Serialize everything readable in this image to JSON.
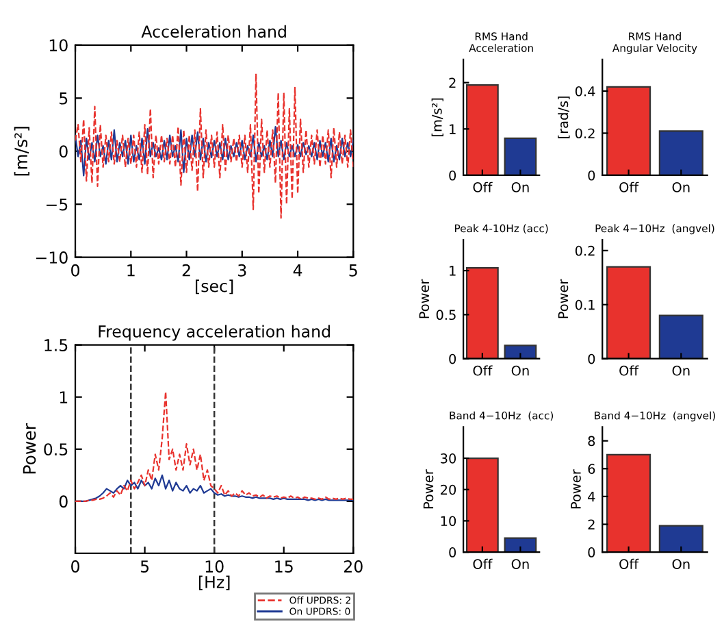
{
  "chart_data": [
    {
      "type": "line",
      "title": "Acceleration hand",
      "xlabel": "[sec]",
      "ylabel": "[m/s²]",
      "xlim": [
        0,
        5
      ],
      "xticks": [
        0,
        1,
        2,
        3,
        4,
        5
      ],
      "ylim": [
        -10,
        10
      ],
      "yticks": [
        {
          "value": -10,
          "label": "−10"
        },
        {
          "value": -5,
          "label": "−5"
        },
        0,
        5,
        10
      ],
      "grid": false,
      "legend": false,
      "x": [
        0,
        0.05,
        0.1,
        0.15,
        0.2,
        0.25,
        0.3,
        0.35,
        0.4,
        0.45,
        0.5,
        0.55,
        0.6,
        0.65,
        0.7,
        0.75,
        0.8,
        0.85,
        0.9,
        0.95,
        1.0,
        1.05,
        1.1,
        1.15,
        1.2,
        1.25,
        1.3,
        1.35,
        1.4,
        1.45,
        1.5,
        1.55,
        1.6,
        1.65,
        1.7,
        1.75,
        1.8,
        1.85,
        1.9,
        1.95,
        2.0,
        2.05,
        2.1,
        2.15,
        2.2,
        2.25,
        2.3,
        2.35,
        2.4,
        2.45,
        2.5,
        2.55,
        2.6,
        2.65,
        2.7,
        2.75,
        2.8,
        2.85,
        2.9,
        2.95,
        3.0,
        3.05,
        3.1,
        3.15,
        3.2,
        3.25,
        3.3,
        3.35,
        3.4,
        3.45,
        3.5,
        3.55,
        3.6,
        3.65,
        3.7,
        3.75,
        3.8,
        3.85,
        3.9,
        3.95,
        4.0,
        4.05,
        4.1,
        4.15,
        4.2,
        4.25,
        4.3,
        4.35,
        4.4,
        4.45,
        4.5,
        4.55,
        4.6,
        4.65,
        4.7,
        4.75,
        4.8,
        4.85,
        4.9,
        4.95,
        5.0
      ],
      "series": [
        {
          "color": "#e8322d",
          "line_style": "dashed",
          "values": [
            1,
            2.5,
            -1,
            3,
            -2.8,
            2.2,
            -3,
            4.2,
            -3.3,
            2.5,
            -1.5,
            1.5,
            -1,
            1.8,
            -1.2,
            1,
            -1,
            1.5,
            -1.5,
            1.2,
            -1.2,
            1.5,
            -1.5,
            1.8,
            -2,
            2.5,
            -2.2,
            4,
            -2.5,
            1.5,
            -1.2,
            1.5,
            -1,
            1.2,
            -1.2,
            1.5,
            -1.5,
            2.3,
            -3.2,
            2,
            -2,
            1.5,
            -1.8,
            2,
            -3.8,
            4,
            -2.5,
            2,
            -1.5,
            1.5,
            -1.5,
            1.8,
            -2.5,
            2.5,
            -1.8,
            1.5,
            -1,
            1.2,
            -1,
            1.5,
            -1.5,
            1.5,
            -2,
            2.5,
            -5.5,
            7.3,
            -4,
            3,
            -2,
            2,
            -1.5,
            2,
            -3,
            5.5,
            -6.3,
            5.5,
            -5,
            4,
            -4.5,
            6,
            -4,
            3,
            -2,
            2,
            -1.5,
            1.5,
            -1.2,
            2,
            -1.5,
            1.5,
            -1.2,
            2,
            -2.5,
            2.2,
            -1.5,
            1.8,
            -1.2,
            1.5,
            -1.5,
            2,
            -1.5
          ]
        },
        {
          "color": "#1f3a93",
          "line_style": "solid",
          "values": [
            1.5,
            -0.5,
            1,
            -2.3,
            1.2,
            -0.8,
            0.8,
            -1,
            1.5,
            -0.5,
            0.5,
            -1.2,
            1,
            -0.8,
            2,
            -1,
            0.8,
            -0.5,
            1,
            -1.2,
            1.5,
            -1,
            0.5,
            -0.8,
            1.2,
            -1.2,
            2.1,
            -0.5,
            0.8,
            -0.5,
            0.3,
            -0.8,
            1,
            -0.8,
            1.5,
            -0.5,
            0.5,
            -1,
            2,
            -2,
            1.2,
            -0.8,
            1.5,
            -0.5,
            1.8,
            -0.8,
            1.2,
            -1,
            0.8,
            -0.6,
            1,
            -0.5,
            0.8,
            -0.8,
            1.2,
            -0.8,
            0.5,
            -0.5,
            0.8,
            -0.5,
            1,
            -0.8,
            0.5,
            -0.5,
            1.5,
            -1,
            0.8,
            -0.5,
            0.5,
            -0.8,
            1,
            -0.5,
            2.3,
            -0.5,
            1,
            -0.8,
            0.8,
            -0.5,
            0.5,
            -0.5,
            0.6,
            -0.5,
            0.8,
            -0.3,
            0.5,
            -0.5,
            0.8,
            -0.8,
            1,
            -0.5,
            0.8,
            -1,
            1.2,
            -1,
            0.5,
            -0.8,
            1.2,
            -0.5,
            0.8,
            -0.5,
            1
          ]
        }
      ]
    },
    {
      "type": "line",
      "title": "Frequency acceleration hand",
      "xlabel": "[Hz]",
      "ylabel": "Power",
      "xlim": [
        0,
        20
      ],
      "xticks": [
        0,
        5,
        10,
        15,
        20
      ],
      "ylim": [
        -0.5,
        1.5
      ],
      "yticks": [
        0,
        0.5,
        1,
        1.5
      ],
      "grid": false,
      "legend": "bottom",
      "ref_lines": [
        {
          "axis": "x",
          "value": 4,
          "color": "#333333",
          "line_style": "dashed"
        },
        {
          "axis": "x",
          "value": 10,
          "color": "#333333",
          "line_style": "dashed"
        }
      ],
      "x": [
        0,
        0.25,
        0.5,
        0.75,
        1,
        1.25,
        1.5,
        1.75,
        2,
        2.25,
        2.5,
        2.75,
        3,
        3.25,
        3.5,
        3.75,
        4,
        4.25,
        4.5,
        4.75,
        5,
        5.25,
        5.5,
        5.75,
        6,
        6.25,
        6.5,
        6.75,
        7,
        7.25,
        7.5,
        7.75,
        8,
        8.25,
        8.5,
        8.75,
        9,
        9.25,
        9.5,
        9.75,
        10,
        10.25,
        10.5,
        10.75,
        11,
        11.25,
        11.5,
        11.75,
        12,
        12.25,
        12.5,
        12.75,
        13,
        13.25,
        13.5,
        13.75,
        14,
        14.25,
        14.5,
        14.75,
        15,
        15.25,
        15.5,
        15.75,
        16,
        16.25,
        16.5,
        16.75,
        17,
        17.25,
        17.5,
        17.75,
        18,
        18.25,
        18.5,
        18.75,
        19,
        19.25,
        19.5,
        19.75,
        20
      ],
      "series": [
        {
          "name": "Off UPDRS: 2",
          "color": "#e8322d",
          "line_style": "dashed",
          "values": [
            0,
            0,
            0,
            0,
            0.01,
            0.01,
            0.02,
            0.02,
            0.03,
            0.05,
            0.08,
            0.04,
            0.1,
            0.06,
            0.15,
            0.1,
            0.2,
            0.12,
            0.18,
            0.25,
            0.15,
            0.3,
            0.2,
            0.45,
            0.3,
            0.6,
            1.05,
            0.4,
            0.5,
            0.3,
            0.45,
            0.3,
            0.55,
            0.35,
            0.5,
            0.3,
            0.45,
            0.2,
            0.3,
            0.15,
            0.12,
            0.08,
            0.15,
            0.06,
            0.1,
            0.05,
            0.08,
            0.05,
            0.1,
            0.06,
            0.08,
            0.05,
            0.06,
            0.04,
            0.06,
            0.03,
            0.05,
            0.04,
            0.05,
            0.03,
            0.04,
            0.03,
            0.05,
            0.03,
            0.04,
            0.02,
            0.04,
            0.03,
            0.03,
            0.02,
            0.03,
            0.02,
            0.04,
            0.02,
            0.03,
            0.02,
            0.03,
            0.02,
            0.03,
            0.02,
            0.02
          ]
        },
        {
          "name": "On UPDRS: 0",
          "color": "#1f3a93",
          "line_style": "solid",
          "values": [
            0,
            0,
            0,
            0,
            0.01,
            0.02,
            0.03,
            0.05,
            0.08,
            0.12,
            0.1,
            0.08,
            0.12,
            0.15,
            0.12,
            0.2,
            0.15,
            0.18,
            0.12,
            0.2,
            0.15,
            0.18,
            0.12,
            0.22,
            0.15,
            0.25,
            0.12,
            0.2,
            0.1,
            0.18,
            0.12,
            0.1,
            0.15,
            0.08,
            0.12,
            0.1,
            0.15,
            0.08,
            0.1,
            0.12,
            0.08,
            0.06,
            0.07,
            0.05,
            0.06,
            0.05,
            0.05,
            0.04,
            0.05,
            0.04,
            0.04,
            0.03,
            0.04,
            0.03,
            0.03,
            0.03,
            0.03,
            0.02,
            0.03,
            0.02,
            0.03,
            0.02,
            0.02,
            0.02,
            0.02,
            0.02,
            0.02,
            0.01,
            0.02,
            0.01,
            0.02,
            0.01,
            0.02,
            0.01,
            0.01,
            0.01,
            0.01,
            0.01,
            0.01,
            0.01,
            0.01
          ]
        }
      ]
    },
    {
      "type": "bar",
      "title": "RMS Hand\nAcceleration",
      "ylabel": "[m/s²]",
      "categories": [
        "Off",
        "On"
      ],
      "values": [
        1.95,
        0.8
      ],
      "colors": [
        "#e8322d",
        "#1f3a93"
      ],
      "ylim": [
        0,
        2.5
      ],
      "yticks": [
        0,
        1,
        2
      ]
    },
    {
      "type": "bar",
      "title": "RMS Hand\nAngular Velocity",
      "ylabel": "[rad/s]",
      "categories": [
        "Off",
        "On"
      ],
      "values": [
        0.42,
        0.21
      ],
      "colors": [
        "#e8322d",
        "#1f3a93"
      ],
      "ylim": [
        0,
        0.55
      ],
      "yticks": [
        0,
        0.2,
        0.4
      ]
    },
    {
      "type": "bar",
      "title": "Peak 4-10Hz (acc)",
      "ylabel": "Power",
      "categories": [
        "Off",
        "On"
      ],
      "values": [
        1.03,
        0.15
      ],
      "colors": [
        "#e8322d",
        "#1f3a93"
      ],
      "ylim": [
        0,
        1.35
      ],
      "yticks": [
        0,
        0.5,
        1
      ]
    },
    {
      "type": "bar",
      "title": "Peak 4−10Hz  (angvel)",
      "ylabel": "Power",
      "categories": [
        "Off",
        "On"
      ],
      "values": [
        0.17,
        0.08
      ],
      "colors": [
        "#e8322d",
        "#1f3a93"
      ],
      "ylim": [
        0,
        0.22
      ],
      "yticks": [
        0,
        0.1,
        0.2
      ]
    },
    {
      "type": "bar",
      "title": "Band 4−10Hz  (acc)",
      "ylabel": "Power",
      "categories": [
        "Off",
        "On"
      ],
      "values": [
        30,
        4.5
      ],
      "colors": [
        "#e8322d",
        "#1f3a93"
      ],
      "ylim": [
        0,
        40
      ],
      "yticks": [
        0,
        10,
        20,
        30
      ]
    },
    {
      "type": "bar",
      "title": "Band 4−10Hz  (angvel)",
      "ylabel": "Power",
      "categories": [
        "Off",
        "On"
      ],
      "values": [
        7,
        1.9
      ],
      "colors": [
        "#e8322d",
        "#1f3a93"
      ],
      "ylim": [
        0,
        9
      ],
      "yticks": [
        0,
        2,
        4,
        6,
        8
      ]
    }
  ]
}
